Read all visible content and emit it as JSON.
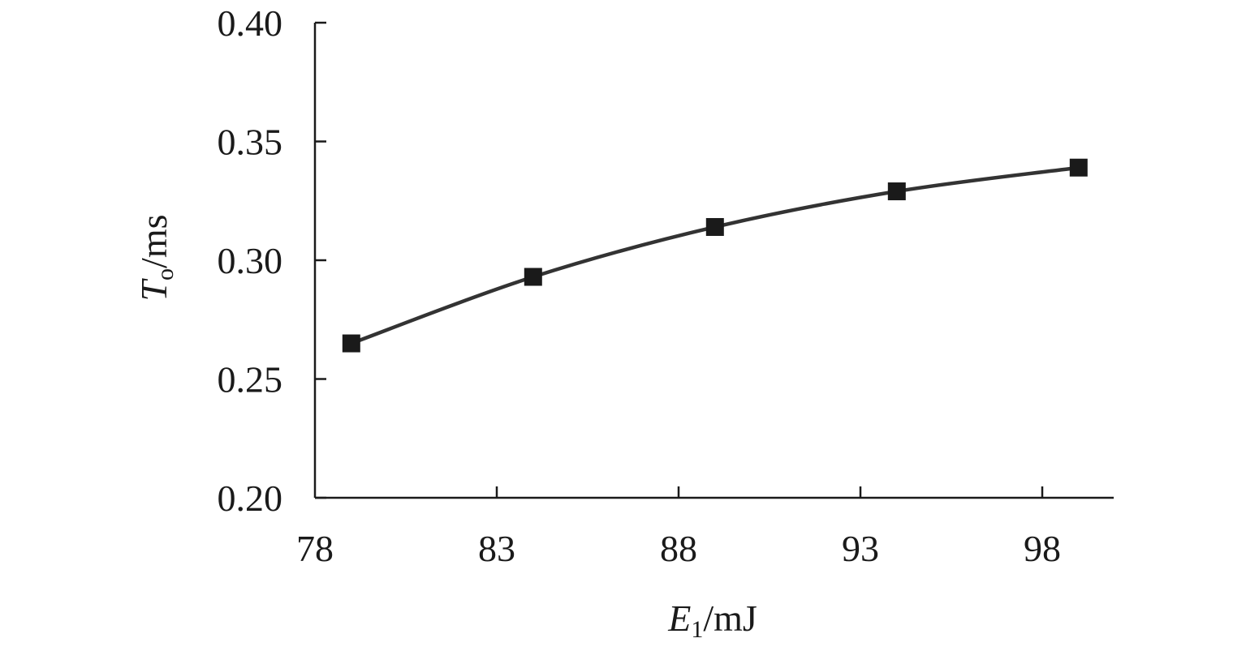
{
  "chart_data": {
    "type": "line",
    "title": "",
    "xlabel": {
      "symbol": "E",
      "subscript": "1",
      "unit": "/mJ"
    },
    "ylabel": {
      "symbol": "T",
      "subscript": "o",
      "unit": "/ms"
    },
    "xlim": [
      78,
      100
    ],
    "ylim": [
      0.2,
      0.4
    ],
    "xticks": [
      "78",
      "83",
      "88",
      "93",
      "98"
    ],
    "yticks": [
      "0.20",
      "0.25",
      "0.30",
      "0.35",
      "0.40"
    ],
    "grid": false,
    "legend": "none",
    "series": [
      {
        "x": [
          79,
          84,
          89,
          94,
          99
        ],
        "y": [
          0.265,
          0.293,
          0.314,
          0.329,
          0.339
        ],
        "color": "#333333",
        "marker": "square",
        "marker_color": "#1a1a1a"
      }
    ]
  }
}
